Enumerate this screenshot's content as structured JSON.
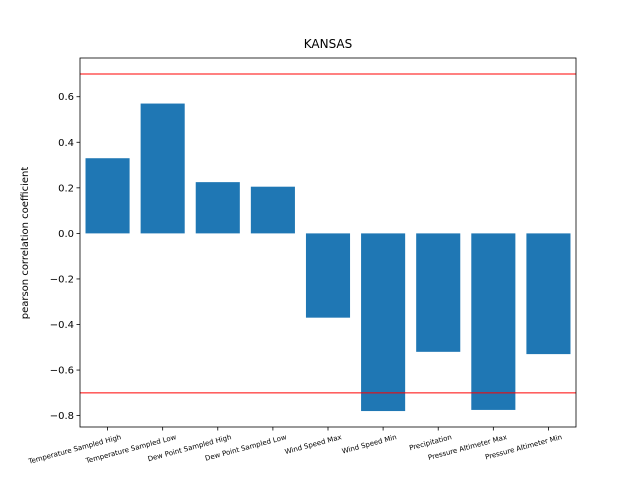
{
  "chart_data": {
    "type": "bar",
    "title": "KANSAS",
    "xlabel": "",
    "ylabel": "pearson correlation coefficient",
    "categories": [
      "Temperature Sampled High",
      "Temperature Sampled Low",
      "Dew Point Sampled High",
      "Dew Point Sampled Low",
      "Wind Speed Max",
      "Wind Speed Min",
      "Precipitation",
      "Pressure Altimeter Max",
      "Pressure Altimeter Min"
    ],
    "values": [
      0.33,
      0.57,
      0.225,
      0.205,
      -0.37,
      -0.78,
      -0.52,
      -0.775,
      -0.53
    ],
    "ylim": [
      -0.85,
      0.77
    ],
    "yticks": [
      "−0.8",
      "−0.6",
      "−0.4",
      "−0.2",
      "0.0",
      "0.2",
      "0.4",
      "0.6"
    ],
    "threshold_lines": [
      0.7,
      -0.7
    ],
    "colors": {
      "bar": "#1f77b4",
      "threshold": "#ff0000",
      "axis": "#000000"
    },
    "grid": false,
    "legend": "none"
  }
}
